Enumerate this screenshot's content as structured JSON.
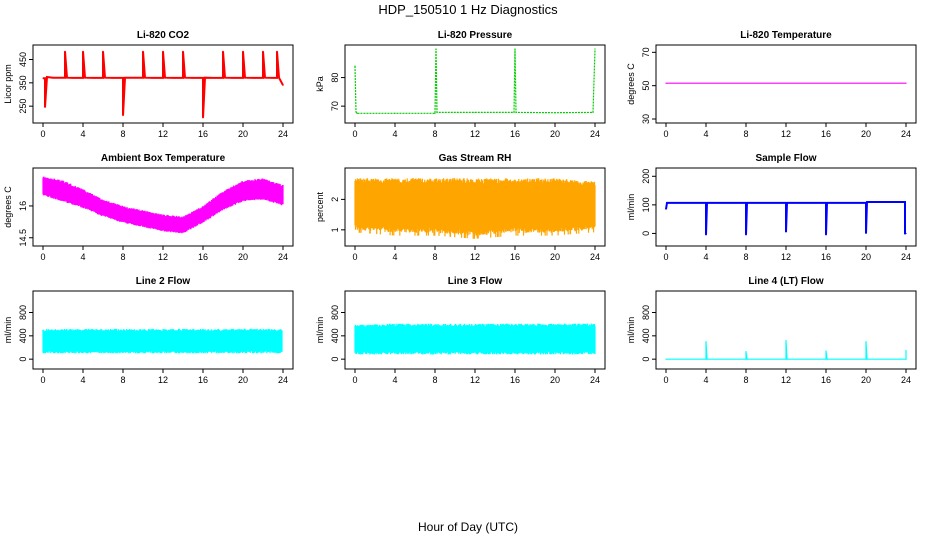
{
  "figure": {
    "title": "HDP_150510  1 Hz Diagnostics",
    "xlabel": "Hour of Day (UTC)"
  },
  "chart_data": [
    {
      "type": "line",
      "title": "Li-820 CO2",
      "ylabel": "Licor ppm",
      "color": "#ff0000",
      "xlim": [
        0,
        24
      ],
      "ylim": [
        195,
        495
      ],
      "yticks": [
        250,
        350,
        450
      ],
      "xticks": [
        0,
        4,
        8,
        12,
        16,
        20,
        24
      ],
      "series": [
        {
          "x": [
            0,
            0.2,
            0.2,
            0.4,
            1.0,
            2.2,
            2.2,
            2.4,
            3.0,
            4.0,
            4.0,
            4.2,
            5.0,
            6.0,
            6.0,
            6.2,
            7.0,
            8.0,
            8.0,
            8.2,
            9.0,
            10.0,
            10.0,
            10.2,
            11.0,
            12.0,
            12.0,
            12.2,
            13.0,
            14.0,
            14.0,
            14.2,
            15.0,
            16.0,
            16.0,
            16.2,
            17.0,
            18.0,
            18.0,
            18.2,
            19.0,
            20.0,
            20.0,
            20.2,
            21.0,
            22.0,
            22.0,
            22.2,
            23.0,
            23.4,
            23.4,
            23.6,
            24.0
          ],
          "y": [
            370,
            370,
            245,
            375,
            372,
            372,
            485,
            372,
            371,
            371,
            485,
            372,
            371,
            371,
            485,
            372,
            371,
            371,
            210,
            372,
            372,
            372,
            485,
            372,
            371,
            371,
            485,
            372,
            371,
            371,
            485,
            372,
            371,
            371,
            200,
            372,
            371,
            371,
            485,
            372,
            371,
            371,
            485,
            372,
            371,
            371,
            485,
            372,
            371,
            371,
            485,
            372,
            340
          ]
        }
      ]
    },
    {
      "type": "line",
      "title": "Li-820 Pressure",
      "ylabel": "kPa",
      "color": "#00cc00",
      "xlim": [
        0,
        24
      ],
      "ylim": [
        65.5,
        90
      ],
      "yticks": [
        70,
        80
      ],
      "xticks": [
        0,
        4,
        8,
        12,
        16,
        20,
        24
      ],
      "series": [
        {
          "x": [
            0,
            0.1,
            0.2,
            4.0,
            8.0,
            8.1,
            8.2,
            12.0,
            15.9,
            16.0,
            16.1,
            20.0,
            23.8,
            24.0
          ],
          "y": [
            84,
            68,
            67.5,
            67.5,
            67.5,
            90,
            67.8,
            67.8,
            67.8,
            90,
            67.8,
            67.7,
            67.8,
            90
          ]
        }
      ]
    },
    {
      "type": "line",
      "title": "Li-820 Temperature",
      "ylabel": "degrees C",
      "color": "#ff00ff",
      "xlim": [
        0,
        24
      ],
      "ylim": [
        30,
        72
      ],
      "yticks": [
        30,
        50,
        70
      ],
      "xticks": [
        0,
        4,
        8,
        12,
        16,
        20,
        24
      ],
      "series": [
        {
          "x": [
            0,
            24
          ],
          "y": [
            51.5,
            51.5
          ]
        }
      ]
    },
    {
      "type": "area",
      "title": "Ambient Box Temperature",
      "ylabel": "degrees C",
      "color": "#ff00ff",
      "xlim": [
        0,
        24
      ],
      "ylim": [
        14.3,
        17.6
      ],
      "yticks": [
        14.5,
        16.0
      ],
      "xticks": [
        0,
        4,
        8,
        12,
        16,
        20,
        24
      ],
      "series": [
        {
          "x": [
            0,
            2,
            4,
            6,
            8,
            10,
            12,
            14,
            16,
            18,
            20,
            22,
            24
          ],
          "y_low": [
            16.5,
            16.2,
            15.9,
            15.5,
            15.2,
            15.0,
            14.8,
            14.7,
            15.2,
            15.8,
            16.2,
            16.3,
            16.0
          ],
          "y_high": [
            17.4,
            17.2,
            16.8,
            16.3,
            16.0,
            15.8,
            15.6,
            15.5,
            16.0,
            16.7,
            17.2,
            17.3,
            17.0
          ]
        }
      ]
    },
    {
      "type": "area",
      "title": "Gas Stream RH",
      "ylabel": "percent",
      "color": "#ffa500",
      "xlim": [
        0,
        24
      ],
      "ylim": [
        0.6,
        2.9
      ],
      "yticks": [
        1.0,
        2.0
      ],
      "xticks": [
        0,
        4,
        8,
        12,
        16,
        20,
        24
      ],
      "series": [
        {
          "x": [
            0,
            4,
            8,
            12,
            16,
            20,
            24
          ],
          "y_low": [
            1.0,
            0.9,
            0.9,
            0.8,
            0.9,
            0.9,
            1.0
          ],
          "y_high": [
            2.7,
            2.7,
            2.7,
            2.7,
            2.7,
            2.7,
            2.6
          ]
        }
      ]
    },
    {
      "type": "line",
      "title": "Sample Flow",
      "ylabel": "ml/min",
      "color": "#0000ff",
      "xlim": [
        0,
        24
      ],
      "ylim": [
        -30,
        215
      ],
      "yticks": [
        0,
        100,
        200
      ],
      "xticks": [
        0,
        4,
        8,
        12,
        16,
        20,
        24
      ],
      "series": [
        {
          "x": [
            0,
            0.1,
            4.0,
            4.0,
            4.1,
            8.0,
            8.0,
            8.1,
            12.0,
            12.0,
            12.1,
            16.0,
            16.0,
            16.1,
            20.0,
            20.0,
            20.1,
            23.9,
            23.9,
            24.0
          ],
          "y": [
            85,
            107,
            107,
            -5,
            107,
            107,
            -5,
            107,
            107,
            5,
            107,
            107,
            -5,
            107,
            107,
            0,
            110,
            110,
            0,
            0
          ]
        }
      ]
    },
    {
      "type": "area",
      "title": "Line 2 Flow",
      "ylabel": "ml/min",
      "color": "#00ffff",
      "xlim": [
        0,
        24
      ],
      "ylim": [
        -100,
        1100
      ],
      "yticks": [
        0,
        400,
        800
      ],
      "xticks": [
        0,
        4,
        8,
        12,
        16,
        20,
        24
      ],
      "series": [
        {
          "x": [
            0,
            4,
            8,
            12,
            16,
            20,
            23.9
          ],
          "y_low": [
            100,
            100,
            100,
            100,
            100,
            100,
            100
          ],
          "y_high": [
            520,
            520,
            520,
            520,
            520,
            520,
            520
          ]
        }
      ]
    },
    {
      "type": "area",
      "title": "Line 3 Flow",
      "ylabel": "ml/min",
      "color": "#00ffff",
      "xlim": [
        0,
        24
      ],
      "ylim": [
        -100,
        1100
      ],
      "yticks": [
        0,
        400,
        800
      ],
      "xticks": [
        0,
        4,
        8,
        12,
        16,
        20,
        24
      ],
      "series": [
        {
          "x": [
            0,
            4,
            8,
            12,
            16,
            20,
            24
          ],
          "y_low": [
            80,
            80,
            80,
            80,
            80,
            80,
            80
          ],
          "y_high": [
            590,
            610,
            610,
            610,
            610,
            610,
            610
          ]
        }
      ]
    },
    {
      "type": "line",
      "title": "Line 4 (LT) Flow",
      "ylabel": "ml/min",
      "color": "#00ffff",
      "xlim": [
        0,
        24
      ],
      "ylim": [
        -100,
        1100
      ],
      "yticks": [
        0,
        400,
        800
      ],
      "xticks": [
        0,
        4,
        8,
        12,
        16,
        20,
        24
      ],
      "series": [
        {
          "x": [
            0,
            4.0,
            4.0,
            4.1,
            8.0,
            8.0,
            8.1,
            12.0,
            12.0,
            12.1,
            16.0,
            16.0,
            16.1,
            20.0,
            20.0,
            20.1,
            24.0,
            24.0
          ],
          "y": [
            0,
            0,
            300,
            0,
            0,
            130,
            0,
            0,
            320,
            0,
            0,
            140,
            0,
            0,
            300,
            0,
            0,
            150
          ]
        }
      ]
    }
  ]
}
